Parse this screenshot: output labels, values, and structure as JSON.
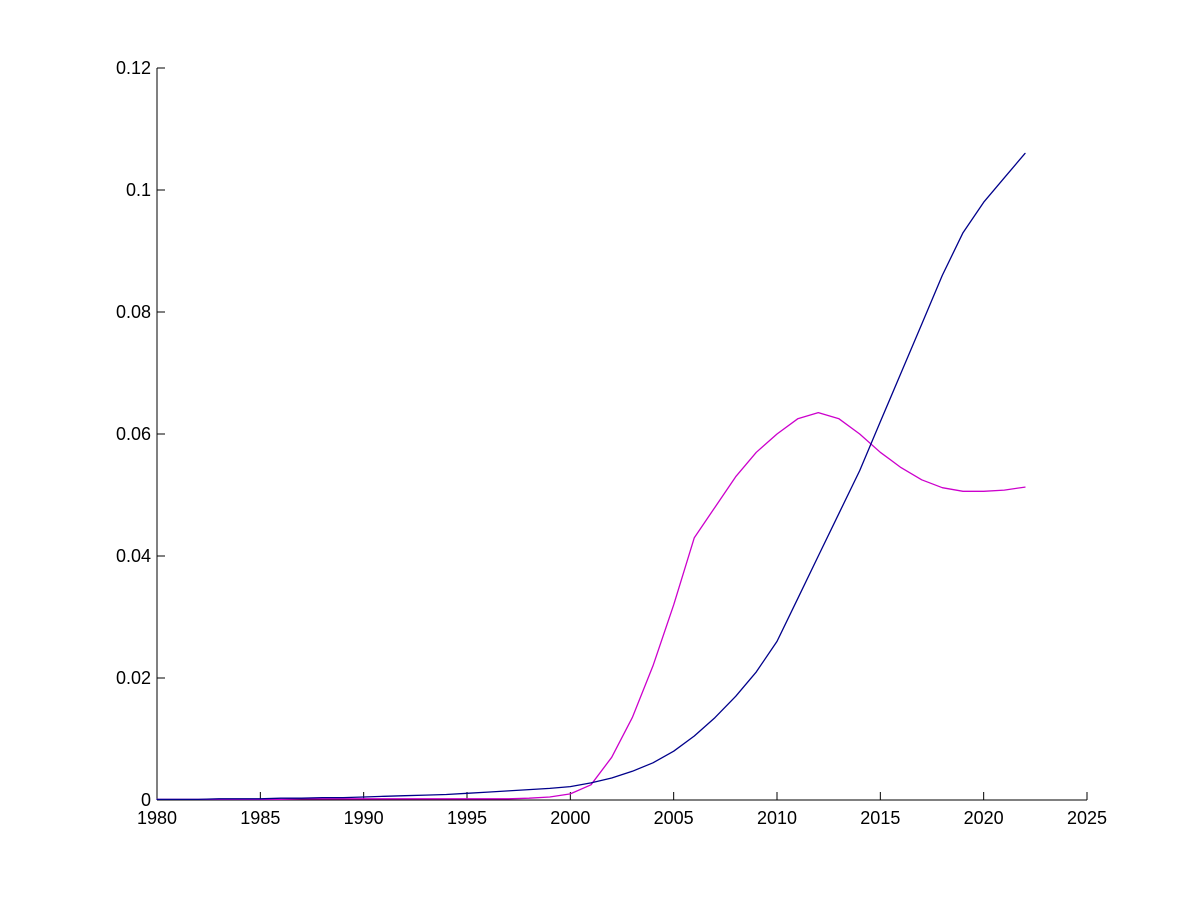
{
  "figure": {
    "background": "#ffffff",
    "axis_color": "#000000",
    "tick_label_color": "#000000"
  },
  "chart_data": {
    "type": "line",
    "title": "",
    "xlabel": "",
    "ylabel": "",
    "xlim": [
      1980,
      2025
    ],
    "ylim": [
      0,
      0.12
    ],
    "grid": false,
    "box": false,
    "tick_direction": "in",
    "legend": [],
    "x_ticks": [
      1980,
      1985,
      1990,
      1995,
      2000,
      2005,
      2010,
      2015,
      2020,
      2025
    ],
    "x_tick_labels": [
      "1980",
      "1985",
      "1990",
      "1995",
      "2000",
      "2005",
      "2010",
      "2015",
      "2020",
      "2025"
    ],
    "y_ticks": [
      0,
      0.02,
      0.04,
      0.06,
      0.08,
      0.1,
      0.12
    ],
    "y_tick_labels": [
      "0",
      "0.02",
      "0.04",
      "0.06",
      "0.08",
      "0.1",
      "0.12"
    ],
    "x": [
      1980,
      1981,
      1982,
      1983,
      1984,
      1985,
      1986,
      1987,
      1988,
      1989,
      1990,
      1991,
      1992,
      1993,
      1994,
      1995,
      1996,
      1997,
      1998,
      1999,
      2000,
      2001,
      2002,
      2003,
      2004,
      2005,
      2006,
      2007,
      2008,
      2009,
      2010,
      2011,
      2012,
      2013,
      2014,
      2015,
      2016,
      2017,
      2018,
      2019,
      2020,
      2021,
      2022
    ],
    "series": [
      {
        "name": "magenta",
        "color": "#CC00CC",
        "values": [
          0.0001,
          0.0001,
          0.0001,
          0.0001,
          0.0001,
          0.0001,
          0.0001,
          0.0002,
          0.0002,
          0.0002,
          0.0002,
          0.0002,
          0.0002,
          0.0002,
          0.0002,
          0.0002,
          0.0002,
          0.0002,
          0.0003,
          0.0005,
          0.001,
          0.0025,
          0.007,
          0.0135,
          0.022,
          0.032,
          0.043,
          0.048,
          0.053,
          0.057,
          0.06,
          0.0625,
          0.0635,
          0.0625,
          0.06,
          0.057,
          0.0545,
          0.0525,
          0.0512,
          0.0506,
          0.0506,
          0.0508,
          0.0513
        ]
      },
      {
        "name": "dark-blue",
        "color": "#00008B",
        "values": [
          0.0001,
          0.0001,
          0.0001,
          0.0002,
          0.0002,
          0.0002,
          0.0003,
          0.0003,
          0.0004,
          0.0004,
          0.0005,
          0.0006,
          0.0007,
          0.0008,
          0.0009,
          0.0011,
          0.0013,
          0.0015,
          0.0017,
          0.0019,
          0.0022,
          0.0028,
          0.0036,
          0.0047,
          0.0061,
          0.008,
          0.0105,
          0.0135,
          0.017,
          0.021,
          0.026,
          0.033,
          0.04,
          0.047,
          0.054,
          0.062,
          0.07,
          0.078,
          0.086,
          0.093,
          0.098,
          0.102,
          0.106
        ]
      }
    ]
  }
}
